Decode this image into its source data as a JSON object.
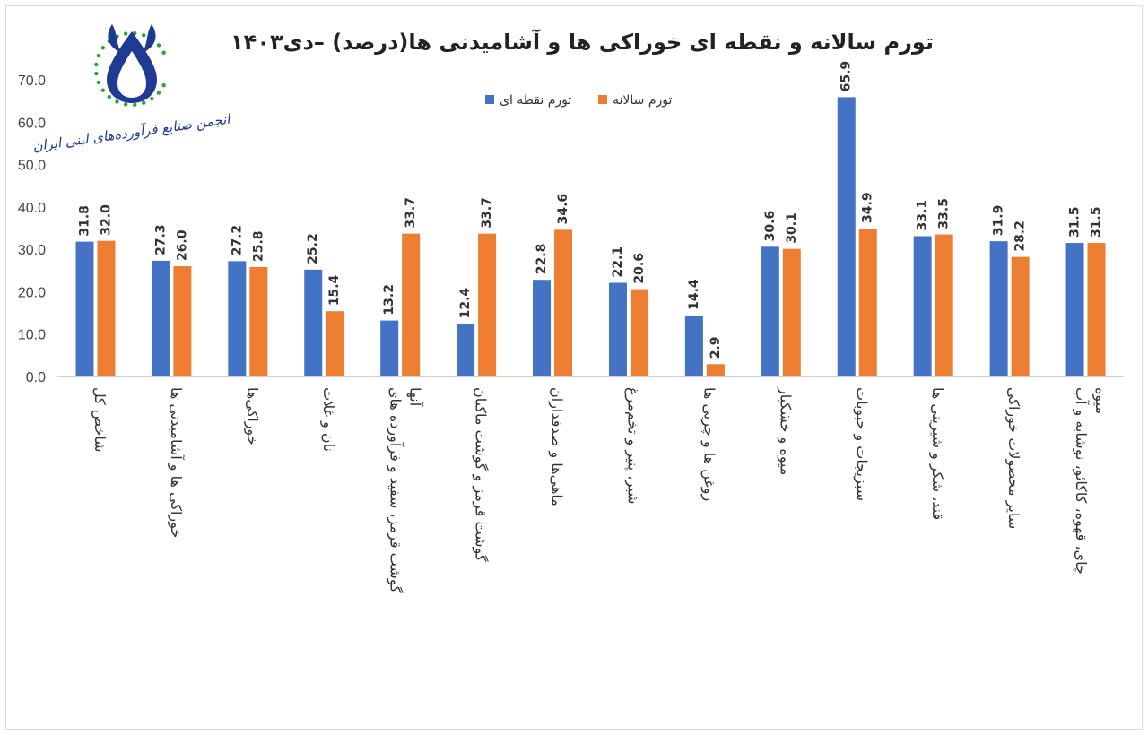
{
  "chart_data": {
    "type": "bar",
    "title": "تورم سالانه و نقطه ای خوراکی ها و آشامیدنی ها(درصد) –دی۱۴۰۳",
    "xlabel": "",
    "ylabel": "",
    "ylim": [
      0,
      70
    ],
    "yticks": [
      "0.0",
      "10.0",
      "20.0",
      "30.0",
      "40.0",
      "50.0",
      "60.0",
      "70.0"
    ],
    "grid": false,
    "legend_position": "top-center",
    "categories": [
      [
        "شاخص کل"
      ],
      [
        "خوراکی ها و آشامیدنی ها"
      ],
      [
        "خوراکی‌ها"
      ],
      [
        "نان و غلات"
      ],
      [
        "گوشت قرمز، سفید و فرآورده های",
        "آنها"
      ],
      [
        "گوشت قرمز و گوشت ماکیان"
      ],
      [
        "ماهی‌ها و صدفداران"
      ],
      [
        "شیر، پنیر و تخم‌مرغ"
      ],
      [
        "روغن ها و چربی ها"
      ],
      [
        "میوه و خشکبار"
      ],
      [
        "سبزیجات و حبوبات"
      ],
      [
        "قند، شکر و شیرینی ها"
      ],
      [
        "سایر محصولات خوراکی"
      ],
      [
        "چای، قهوه، کاکائو، نوشابه و آب",
        "میوه"
      ]
    ],
    "series": [
      {
        "name": "تورم نقطه ای",
        "color": "#4472c4",
        "values": [
          31.8,
          27.3,
          27.2,
          25.2,
          13.2,
          12.4,
          22.8,
          22.1,
          14.4,
          30.6,
          65.9,
          33.1,
          31.9,
          31.5
        ],
        "labels": [
          "31.8",
          "27.3",
          "27.2",
          "25.2",
          "13.2",
          "12.4",
          "22.8",
          "22.1",
          "14.4",
          "30.6",
          "65.9",
          "33.1",
          "31.9",
          "31.5"
        ]
      },
      {
        "name": "تورم سالانه",
        "color": "#ed7d31",
        "values": [
          32.0,
          26.0,
          25.8,
          15.4,
          33.7,
          33.7,
          34.6,
          20.6,
          2.9,
          30.1,
          34.9,
          33.5,
          28.2,
          31.5
        ],
        "labels": [
          "32.0",
          "26.0",
          "25.8",
          "15.4",
          "33.7",
          "33.7",
          "34.6",
          "20.6",
          "2.9",
          "30.1",
          "34.9",
          "33.5",
          "28.2",
          "31.5"
        ]
      }
    ]
  },
  "logo": {
    "text": "انجمن صنایع فرآورده‌های لبنی ایران",
    "color": "#1f3a93",
    "accent": "#2e9e3e"
  }
}
